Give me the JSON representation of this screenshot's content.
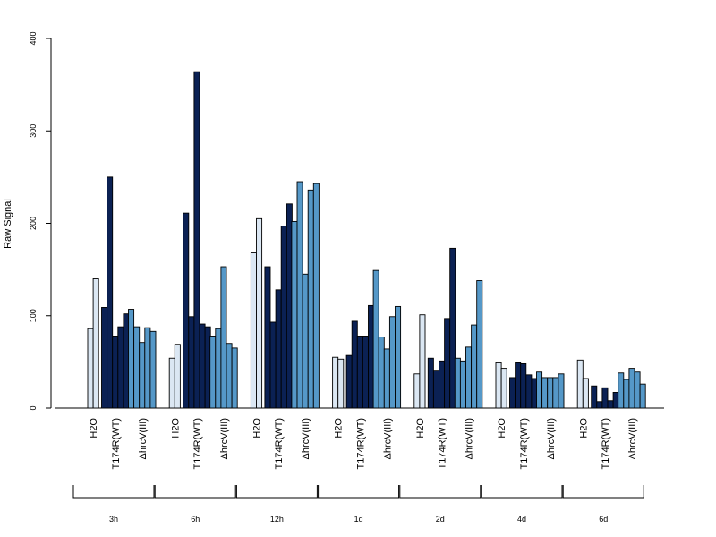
{
  "chart_data": {
    "type": "bar",
    "title": "",
    "xlabel": "",
    "ylabel": "Raw Signal",
    "ylim": [
      0,
      400
    ],
    "yticks": [
      0,
      100,
      200,
      300,
      400
    ],
    "colors": {
      "H2O": "#dbe7f3",
      "T174R(WT)": "#0b2154",
      "ΔhrcV(III)": "#5598c8"
    },
    "groups": [
      {
        "time": "3h",
        "series": [
          {
            "name": "H2O",
            "values": [
              86,
              140
            ]
          },
          {
            "name": "T174R(WT)",
            "values": [
              109,
              250,
              78,
              88,
              102
            ]
          },
          {
            "name": "ΔhrcV(III)",
            "values": [
              107,
              88,
              71,
              87,
              83
            ]
          }
        ]
      },
      {
        "time": "6h",
        "series": [
          {
            "name": "H2O",
            "values": [
              54,
              69
            ]
          },
          {
            "name": "T174R(WT)",
            "values": [
              211,
              99,
              364,
              91,
              88
            ]
          },
          {
            "name": "ΔhrcV(III)",
            "values": [
              78,
              86,
              153,
              70,
              65
            ]
          }
        ]
      },
      {
        "time": "12h",
        "series": [
          {
            "name": "H2O",
            "values": [
              168,
              205
            ]
          },
          {
            "name": "T174R(WT)",
            "values": [
              153,
              93,
              128,
              197,
              221
            ]
          },
          {
            "name": "ΔhrcV(III)",
            "values": [
              202,
              245,
              145,
              236,
              243
            ]
          }
        ]
      },
      {
        "time": "1d",
        "series": [
          {
            "name": "H2O",
            "values": [
              55,
              53
            ]
          },
          {
            "name": "T174R(WT)",
            "values": [
              57,
              94,
              78,
              78,
              111
            ]
          },
          {
            "name": "ΔhrcV(III)",
            "values": [
              149,
              77,
              64,
              99,
              110
            ]
          }
        ]
      },
      {
        "time": "2d",
        "series": [
          {
            "name": "H2O",
            "values": [
              37,
              101
            ]
          },
          {
            "name": "T174R(WT)",
            "values": [
              54,
              41,
              51,
              97,
              173
            ]
          },
          {
            "name": "ΔhrcV(III)",
            "values": [
              54,
              51,
              66,
              90,
              138
            ]
          }
        ]
      },
      {
        "time": "4d",
        "series": [
          {
            "name": "H2O",
            "values": [
              49,
              43
            ]
          },
          {
            "name": "T174R(WT)",
            "values": [
              33,
              49,
              48,
              36,
              32
            ]
          },
          {
            "name": "ΔhrcV(III)",
            "values": [
              39,
              33,
              33,
              33,
              37
            ]
          }
        ]
      },
      {
        "time": "6d",
        "series": [
          {
            "name": "H2O",
            "values": [
              52,
              32
            ]
          },
          {
            "name": "T174R(WT)",
            "values": [
              24,
              7,
              22,
              8,
              17
            ]
          },
          {
            "name": "ΔhrcV(III)",
            "values": [
              38,
              31,
              43,
              39,
              26
            ]
          }
        ]
      }
    ]
  }
}
